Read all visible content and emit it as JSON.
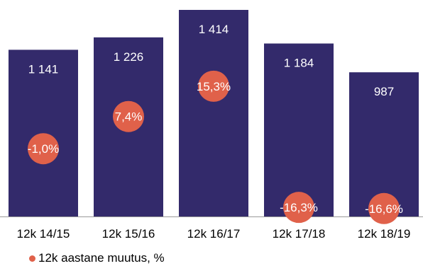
{
  "chart_data": {
    "type": "bar",
    "categories": [
      "12k 14/15",
      "12k 15/16",
      "12k 16/17",
      "12k 17/18",
      "12k 18/19"
    ],
    "series": [
      {
        "values": [
          1141,
          1226,
          1414,
          1184,
          987
        ],
        "value_labels": [
          "1 141",
          "1 226",
          "1 414",
          "1 184",
          "987"
        ],
        "color": "#332a6b"
      },
      {
        "name": "12k aastane muutus, %",
        "values": [
          -1.0,
          7.4,
          15.3,
          -16.3,
          -16.6
        ],
        "value_labels": [
          "-1,0%",
          "7,4%",
          "15,3%",
          "-16,3%",
          "-16,6%"
        ],
        "color": "#e0614a",
        "marker": "circle"
      }
    ],
    "legend_position": "bottom-left",
    "grid": false
  }
}
